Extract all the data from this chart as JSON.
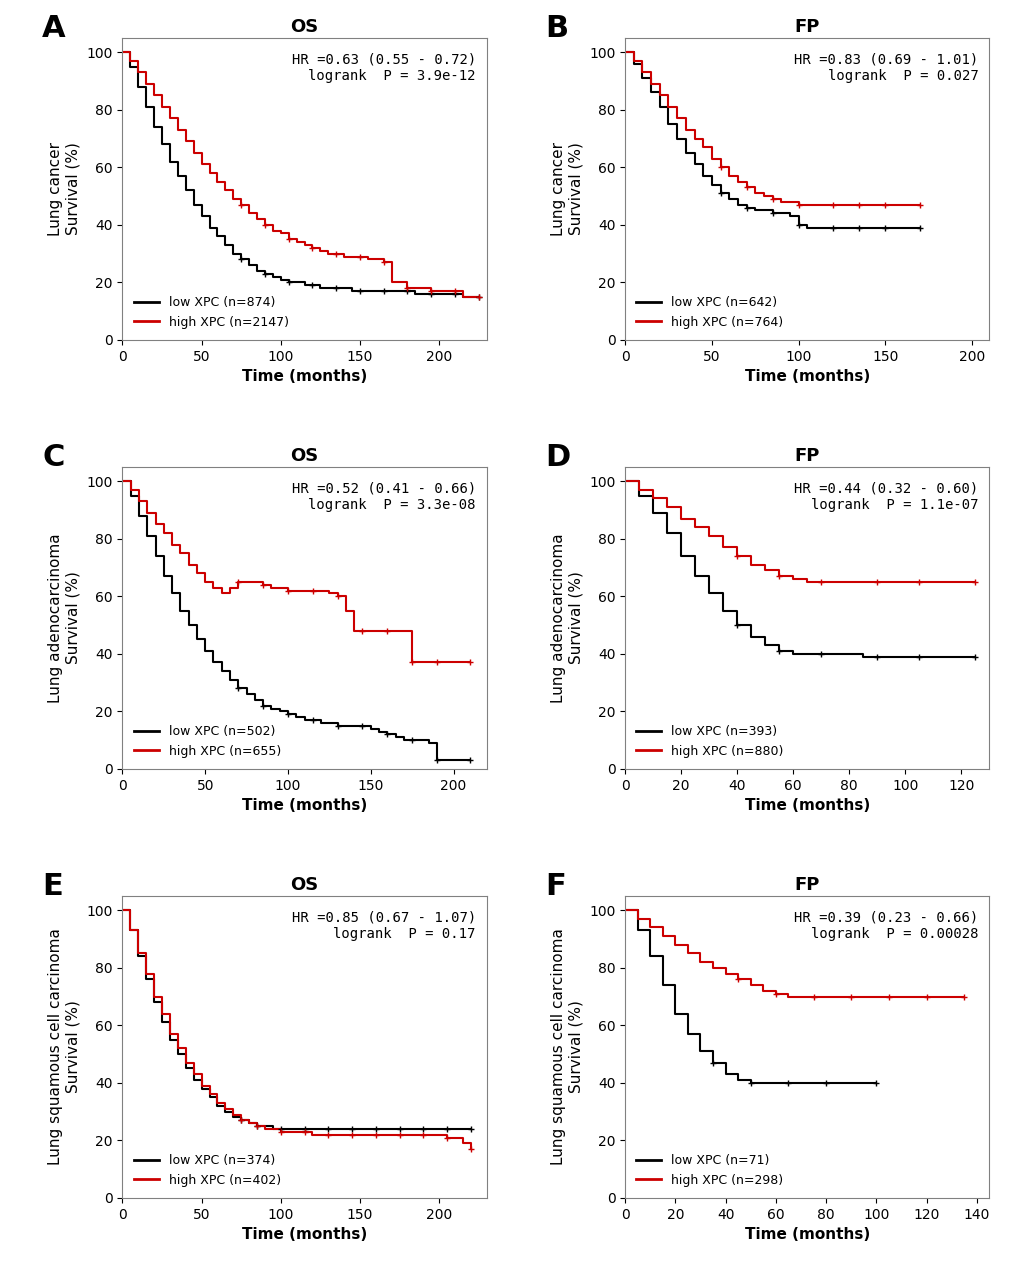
{
  "panels": [
    {
      "label": "A",
      "title": "OS",
      "ylabel": "Lung cancer\nSurvival (%)",
      "xlabel": "Time (months)",
      "hr_text": "HR =0.63 (0.55 - 0.72)\nlogrank  P = 3.9e-12",
      "xmax": 230,
      "xticks": [
        0,
        50,
        100,
        150,
        200
      ],
      "yticks": [
        0,
        20,
        40,
        60,
        80,
        100
      ],
      "low_label": "low XPC (n=874)",
      "high_label": "high XPC (n=2147)",
      "low_curve": {
        "x": [
          0,
          5,
          10,
          15,
          20,
          25,
          30,
          35,
          40,
          45,
          50,
          55,
          60,
          65,
          70,
          75,
          80,
          85,
          90,
          95,
          100,
          105,
          110,
          115,
          120,
          125,
          130,
          135,
          140,
          145,
          150,
          155,
          160,
          165,
          170,
          175,
          180,
          185,
          190,
          195,
          200,
          205,
          210,
          215,
          220,
          225
        ],
        "y": [
          100,
          95,
          88,
          81,
          74,
          68,
          62,
          57,
          52,
          47,
          43,
          39,
          36,
          33,
          30,
          28,
          26,
          24,
          23,
          22,
          21,
          20,
          20,
          19,
          19,
          18,
          18,
          18,
          18,
          17,
          17,
          17,
          17,
          17,
          17,
          17,
          17,
          16,
          16,
          16,
          16,
          16,
          16,
          15,
          15,
          15
        ]
      },
      "high_curve": {
        "x": [
          0,
          5,
          10,
          15,
          20,
          25,
          30,
          35,
          40,
          45,
          50,
          55,
          60,
          65,
          70,
          75,
          80,
          85,
          90,
          95,
          100,
          105,
          110,
          115,
          120,
          125,
          130,
          135,
          140,
          145,
          150,
          155,
          160,
          165,
          170,
          175,
          180,
          185,
          190,
          195,
          200,
          205,
          210,
          215,
          220,
          225
        ],
        "y": [
          100,
          97,
          93,
          89,
          85,
          81,
          77,
          73,
          69,
          65,
          61,
          58,
          55,
          52,
          49,
          47,
          44,
          42,
          40,
          38,
          37,
          35,
          34,
          33,
          32,
          31,
          30,
          30,
          29,
          29,
          29,
          28,
          28,
          27,
          20,
          20,
          18,
          18,
          18,
          17,
          17,
          17,
          17,
          15,
          15,
          15
        ]
      }
    },
    {
      "label": "B",
      "title": "FP",
      "ylabel": "Lung cancer\nSurvival (%)",
      "xlabel": "Time (months)",
      "hr_text": "HR =0.83 (0.69 - 1.01)\nlogrank  P = 0.027",
      "xmax": 210,
      "xticks": [
        0,
        50,
        100,
        150,
        200
      ],
      "yticks": [
        0,
        20,
        40,
        60,
        80,
        100
      ],
      "low_label": "low XPC (n=642)",
      "high_label": "high XPC (n=764)",
      "low_curve": {
        "x": [
          0,
          5,
          10,
          15,
          20,
          25,
          30,
          35,
          40,
          45,
          50,
          55,
          60,
          65,
          70,
          75,
          80,
          85,
          90,
          95,
          100,
          105,
          110,
          115,
          120,
          125,
          130,
          135,
          140,
          145,
          150,
          155,
          160,
          165,
          170
        ],
        "y": [
          100,
          96,
          91,
          86,
          81,
          75,
          70,
          65,
          61,
          57,
          54,
          51,
          49,
          47,
          46,
          45,
          45,
          44,
          44,
          43,
          40,
          39,
          39,
          39,
          39,
          39,
          39,
          39,
          39,
          39,
          39,
          39,
          39,
          39,
          39
        ]
      },
      "high_curve": {
        "x": [
          0,
          5,
          10,
          15,
          20,
          25,
          30,
          35,
          40,
          45,
          50,
          55,
          60,
          65,
          70,
          75,
          80,
          85,
          90,
          95,
          100,
          105,
          110,
          115,
          120,
          125,
          130,
          135,
          140,
          145,
          150,
          155,
          160,
          165,
          170
        ],
        "y": [
          100,
          97,
          93,
          89,
          85,
          81,
          77,
          73,
          70,
          67,
          63,
          60,
          57,
          55,
          53,
          51,
          50,
          49,
          48,
          48,
          47,
          47,
          47,
          47,
          47,
          47,
          47,
          47,
          47,
          47,
          47,
          47,
          47,
          47,
          47
        ]
      }
    },
    {
      "label": "C",
      "title": "OS",
      "ylabel": "Lung adenocarcinoma\nSurvival (%)",
      "xlabel": "Time (months)",
      "hr_text": "HR =0.52 (0.41 - 0.66)\nlogrank  P = 3.3e-08",
      "xmax": 220,
      "xticks": [
        0,
        50,
        100,
        150,
        200
      ],
      "yticks": [
        0,
        20,
        40,
        60,
        80,
        100
      ],
      "low_label": "low XPC (n=502)",
      "high_label": "high XPC (n=655)",
      "low_curve": {
        "x": [
          0,
          5,
          10,
          15,
          20,
          25,
          30,
          35,
          40,
          45,
          50,
          55,
          60,
          65,
          70,
          75,
          80,
          85,
          90,
          95,
          100,
          105,
          110,
          115,
          120,
          125,
          130,
          135,
          140,
          145,
          150,
          155,
          160,
          165,
          170,
          175,
          180,
          185,
          190,
          195,
          200,
          205,
          210
        ],
        "y": [
          100,
          95,
          88,
          81,
          74,
          67,
          61,
          55,
          50,
          45,
          41,
          37,
          34,
          31,
          28,
          26,
          24,
          22,
          21,
          20,
          19,
          18,
          17,
          17,
          16,
          16,
          15,
          15,
          15,
          15,
          14,
          13,
          12,
          11,
          10,
          10,
          10,
          9,
          3,
          3,
          3,
          3,
          3
        ]
      },
      "high_curve": {
        "x": [
          0,
          5,
          10,
          15,
          20,
          25,
          30,
          35,
          40,
          45,
          50,
          55,
          60,
          65,
          70,
          75,
          80,
          85,
          90,
          95,
          100,
          105,
          110,
          115,
          120,
          125,
          130,
          135,
          140,
          145,
          150,
          155,
          160,
          165,
          170,
          175,
          180,
          185,
          190,
          195,
          200,
          205,
          210
        ],
        "y": [
          100,
          97,
          93,
          89,
          85,
          82,
          78,
          75,
          71,
          68,
          65,
          63,
          61,
          63,
          65,
          65,
          65,
          64,
          63,
          63,
          62,
          62,
          62,
          62,
          62,
          61,
          60,
          55,
          48,
          48,
          48,
          48,
          48,
          48,
          48,
          37,
          37,
          37,
          37,
          37,
          37,
          37,
          37
        ]
      }
    },
    {
      "label": "D",
      "title": "FP",
      "ylabel": "Lung adenocarcinoma\nSurvival (%)",
      "xlabel": "Time (months)",
      "hr_text": "HR =0.44 (0.32 - 0.60)\nlogrank  P = 1.1e-07",
      "xmax": 130,
      "xticks": [
        0,
        20,
        40,
        60,
        80,
        100,
        120
      ],
      "yticks": [
        0,
        20,
        40,
        60,
        80,
        100
      ],
      "low_label": "low XPC (n=393)",
      "high_label": "high XPC (n=880)",
      "low_curve": {
        "x": [
          0,
          5,
          10,
          15,
          20,
          25,
          30,
          35,
          40,
          45,
          50,
          55,
          60,
          65,
          70,
          75,
          80,
          85,
          90,
          95,
          100,
          105,
          110,
          115,
          120,
          125
        ],
        "y": [
          100,
          95,
          89,
          82,
          74,
          67,
          61,
          55,
          50,
          46,
          43,
          41,
          40,
          40,
          40,
          40,
          40,
          39,
          39,
          39,
          39,
          39,
          39,
          39,
          39,
          39
        ]
      },
      "high_curve": {
        "x": [
          0,
          5,
          10,
          15,
          20,
          25,
          30,
          35,
          40,
          45,
          50,
          55,
          60,
          65,
          70,
          75,
          80,
          85,
          90,
          95,
          100,
          105,
          110,
          115,
          120,
          125
        ],
        "y": [
          100,
          97,
          94,
          91,
          87,
          84,
          81,
          77,
          74,
          71,
          69,
          67,
          66,
          65,
          65,
          65,
          65,
          65,
          65,
          65,
          65,
          65,
          65,
          65,
          65,
          65
        ]
      }
    },
    {
      "label": "E",
      "title": "OS",
      "ylabel": "Lung squamous cell carcinoma\nSurvival (%)",
      "xlabel": "Time (months)",
      "hr_text": "HR =0.85 (0.67 - 1.07)\nlogrank  P = 0.17",
      "xmax": 230,
      "xticks": [
        0,
        50,
        100,
        150,
        200
      ],
      "yticks": [
        0,
        20,
        40,
        60,
        80,
        100
      ],
      "low_label": "low XPC (n=374)",
      "high_label": "high XPC (n=402)",
      "low_curve": {
        "x": [
          0,
          5,
          10,
          15,
          20,
          25,
          30,
          35,
          40,
          45,
          50,
          55,
          60,
          65,
          70,
          75,
          80,
          85,
          90,
          95,
          100,
          105,
          110,
          115,
          120,
          125,
          130,
          135,
          140,
          145,
          150,
          155,
          160,
          165,
          170,
          175,
          180,
          185,
          190,
          195,
          200,
          205,
          210,
          215,
          220
        ],
        "y": [
          100,
          93,
          84,
          76,
          68,
          61,
          55,
          50,
          45,
          41,
          38,
          35,
          32,
          30,
          28,
          27,
          26,
          25,
          25,
          24,
          24,
          24,
          24,
          24,
          24,
          24,
          24,
          24,
          24,
          24,
          24,
          24,
          24,
          24,
          24,
          24,
          24,
          24,
          24,
          24,
          24,
          24,
          24,
          24,
          24
        ]
      },
      "high_curve": {
        "x": [
          0,
          5,
          10,
          15,
          20,
          25,
          30,
          35,
          40,
          45,
          50,
          55,
          60,
          65,
          70,
          75,
          80,
          85,
          90,
          95,
          100,
          105,
          110,
          115,
          120,
          125,
          130,
          135,
          140,
          145,
          150,
          155,
          160,
          165,
          170,
          175,
          180,
          185,
          190,
          195,
          200,
          205,
          210,
          215,
          220
        ],
        "y": [
          100,
          93,
          85,
          78,
          70,
          64,
          57,
          52,
          47,
          43,
          39,
          36,
          33,
          31,
          29,
          27,
          26,
          25,
          24,
          24,
          23,
          23,
          23,
          23,
          22,
          22,
          22,
          22,
          22,
          22,
          22,
          22,
          22,
          22,
          22,
          22,
          22,
          22,
          22,
          22,
          22,
          21,
          21,
          19,
          17
        ]
      }
    },
    {
      "label": "F",
      "title": "FP",
      "ylabel": "Lung squamous cell carcinoma\nSurvival (%)",
      "xlabel": "Time (months)",
      "hr_text": "HR =0.39 (0.23 - 0.66)\nlogrank  P = 0.00028",
      "xmax": 145,
      "xticks": [
        0,
        20,
        40,
        60,
        80,
        100,
        120,
        140
      ],
      "yticks": [
        0,
        20,
        40,
        60,
        80,
        100
      ],
      "low_label": "low XPC (n=71)",
      "high_label": "high XPC (n=298)",
      "low_curve": {
        "x": [
          0,
          5,
          10,
          15,
          20,
          25,
          30,
          35,
          40,
          45,
          50,
          55,
          60,
          65,
          70,
          75,
          80,
          85,
          90,
          95,
          100
        ],
        "y": [
          100,
          93,
          84,
          74,
          64,
          57,
          51,
          47,
          43,
          41,
          40,
          40,
          40,
          40,
          40,
          40,
          40,
          40,
          40,
          40,
          40
        ]
      },
      "high_curve": {
        "x": [
          0,
          5,
          10,
          15,
          20,
          25,
          30,
          35,
          40,
          45,
          50,
          55,
          60,
          65,
          70,
          75,
          80,
          85,
          90,
          95,
          100,
          105,
          110,
          115,
          120,
          125,
          130,
          135
        ],
        "y": [
          100,
          97,
          94,
          91,
          88,
          85,
          82,
          80,
          78,
          76,
          74,
          72,
          71,
          70,
          70,
          70,
          70,
          70,
          70,
          70,
          70,
          70,
          70,
          70,
          70,
          70,
          70,
          70
        ]
      }
    }
  ],
  "low_color": "#000000",
  "high_color": "#cc0000",
  "panel_label_fontsize": 22,
  "title_fontsize": 13,
  "tick_fontsize": 10,
  "label_fontsize": 11,
  "hr_fontsize": 10,
  "legend_fontsize": 9
}
